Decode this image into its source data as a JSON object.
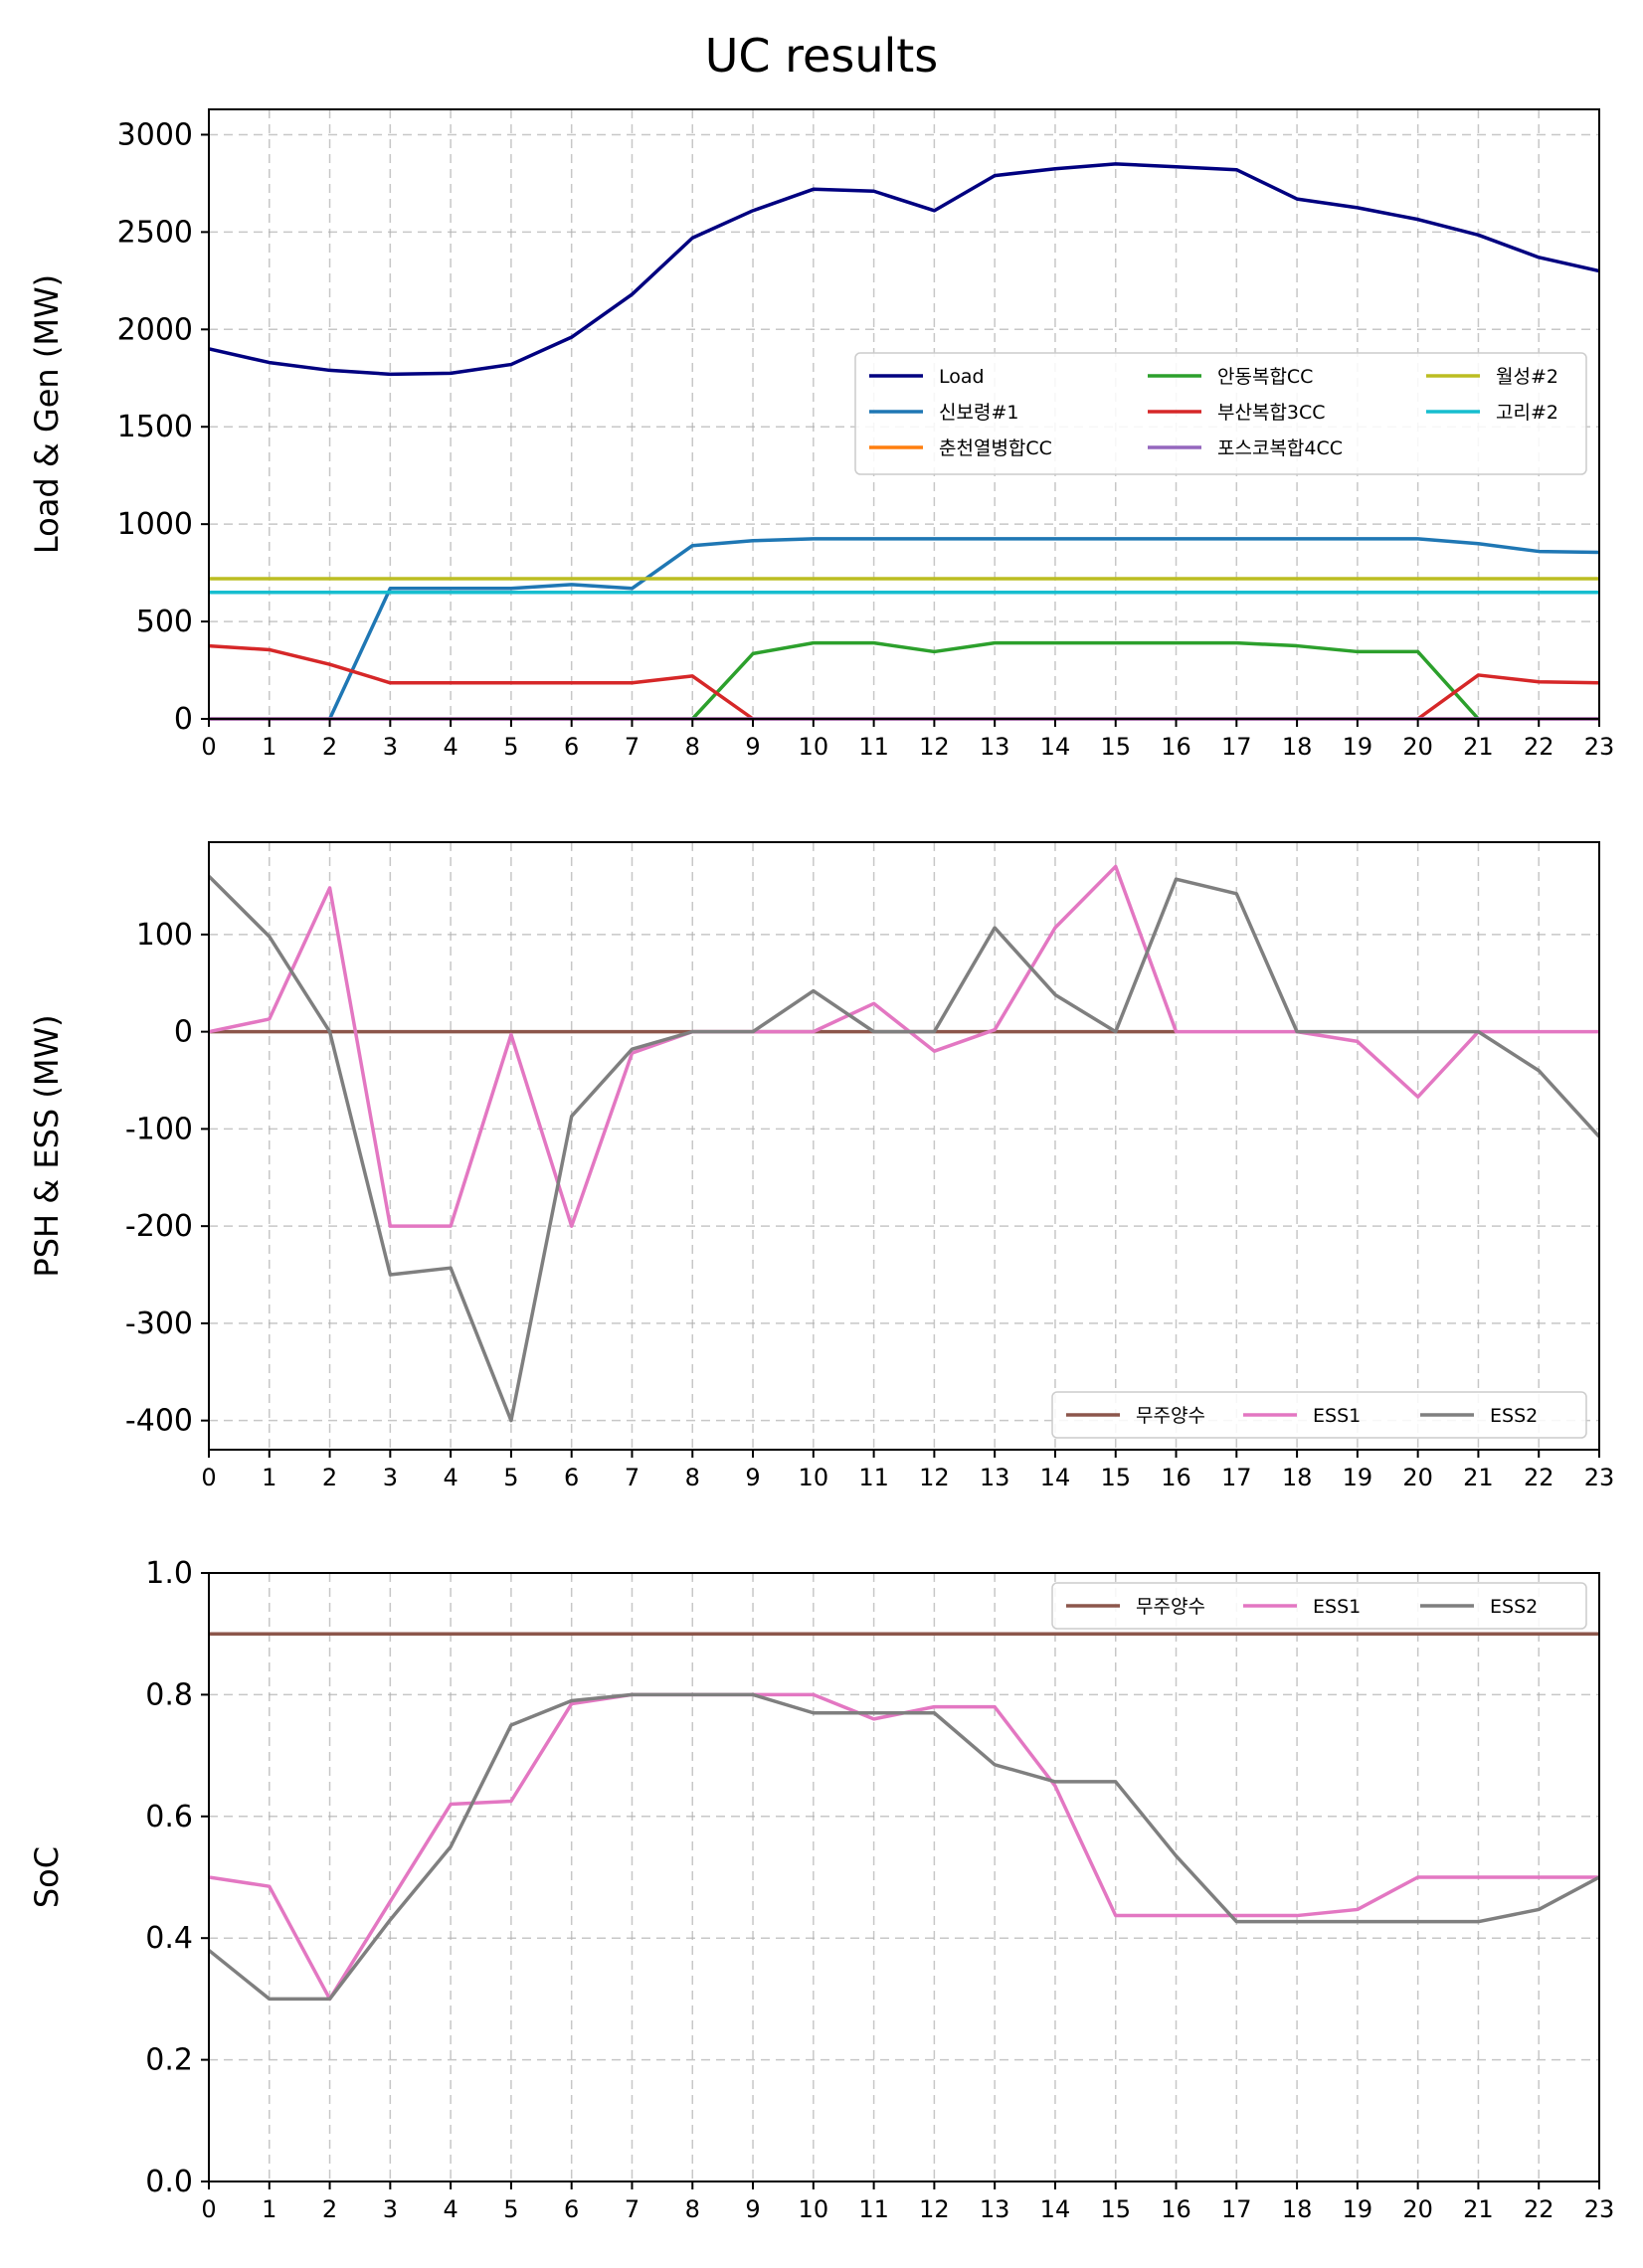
{
  "title": "UC results",
  "chart_data": [
    {
      "type": "line",
      "ylabel": "Load & Gen (MW)",
      "xlabel": "",
      "xlim": [
        0,
        23
      ],
      "ylim": [
        0,
        3130
      ],
      "yticks": [
        0,
        500,
        1000,
        1500,
        2000,
        2500,
        3000
      ],
      "grid": true,
      "legend": {
        "placement": "center-right",
        "columns": 3
      },
      "x": [
        0,
        1,
        2,
        3,
        4,
        5,
        6,
        7,
        8,
        9,
        10,
        11,
        12,
        13,
        14,
        15,
        16,
        17,
        18,
        19,
        20,
        21,
        22,
        23
      ],
      "series": [
        {
          "name": "Load",
          "color": "#000080",
          "values": [
            1900,
            1830,
            1790,
            1770,
            1775,
            1820,
            1960,
            2180,
            2470,
            2610,
            2720,
            2710,
            2610,
            2790,
            2825,
            2850,
            2835,
            2820,
            2670,
            2625,
            2565,
            2485,
            2370,
            2300
          ]
        },
        {
          "name": "신보령#1",
          "color": "#1f77b4",
          "values": [
            null,
            null,
            0,
            670,
            670,
            670,
            690,
            670,
            890,
            915,
            925,
            925,
            925,
            925,
            925,
            925,
            925,
            925,
            925,
            925,
            925,
            900,
            860,
            855
          ]
        },
        {
          "name": "춘천열병합CC",
          "color": "#ff7f0e",
          "values": [
            0,
            0,
            0,
            0,
            0,
            0,
            0,
            0,
            0,
            0,
            0,
            0,
            0,
            0,
            0,
            0,
            0,
            0,
            0,
            0,
            0,
            0,
            0,
            0
          ]
        },
        {
          "name": "안동복합CC",
          "color": "#2ca02c",
          "values": [
            null,
            null,
            null,
            null,
            null,
            null,
            null,
            null,
            0,
            335,
            390,
            390,
            345,
            390,
            390,
            390,
            390,
            390,
            375,
            345,
            345,
            0,
            null,
            null
          ]
        },
        {
          "name": "부산복합3CC",
          "color": "#d62728",
          "values": [
            375,
            355,
            280,
            185,
            185,
            185,
            185,
            185,
            220,
            0,
            null,
            null,
            null,
            null,
            null,
            null,
            null,
            null,
            null,
            null,
            0,
            225,
            190,
            185
          ]
        },
        {
          "name": "포스코복합4CC",
          "color": "#9467bd",
          "values": [
            0,
            0,
            0,
            0,
            0,
            0,
            0,
            0,
            0,
            0,
            0,
            0,
            0,
            0,
            0,
            0,
            0,
            0,
            0,
            0,
            0,
            0,
            0,
            0
          ]
        },
        {
          "name": "월성#2",
          "color": "#bcbd22",
          "values": [
            720,
            720,
            720,
            720,
            720,
            720,
            720,
            720,
            720,
            720,
            720,
            720,
            720,
            720,
            720,
            720,
            720,
            720,
            720,
            720,
            720,
            720,
            720,
            720
          ]
        },
        {
          "name": "고리#2",
          "color": "#17becf",
          "values": [
            650,
            650,
            650,
            650,
            650,
            650,
            650,
            650,
            650,
            650,
            650,
            650,
            650,
            650,
            650,
            650,
            650,
            650,
            650,
            650,
            650,
            650,
            650,
            650
          ]
        }
      ]
    },
    {
      "type": "line",
      "ylabel": "PSH & ESS (MW)",
      "xlabel": "",
      "xlim": [
        0,
        23
      ],
      "ylim": [
        -430,
        195
      ],
      "yticks": [
        -400,
        -300,
        -200,
        -100,
        0,
        100
      ],
      "grid": true,
      "legend": {
        "placement": "lower-right",
        "columns": 3
      },
      "x": [
        0,
        1,
        2,
        3,
        4,
        5,
        6,
        7,
        8,
        9,
        10,
        11,
        12,
        13,
        14,
        15,
        16,
        17,
        18,
        19,
        20,
        21,
        22,
        23
      ],
      "series": [
        {
          "name": "무주양수",
          "color": "#8c564b",
          "values": [
            0,
            0,
            0,
            0,
            0,
            0,
            0,
            0,
            0,
            0,
            0,
            0,
            0,
            0,
            0,
            0,
            0,
            null,
            null,
            null,
            null,
            null,
            null,
            null
          ]
        },
        {
          "name": "ESS1",
          "color": "#e377c2",
          "values": [
            0,
            13,
            148,
            -200,
            -200,
            -3,
            -200,
            -22,
            0,
            0,
            0,
            29,
            -20,
            2,
            107,
            170,
            0,
            0,
            0,
            -10,
            -67,
            0,
            0,
            0
          ]
        },
        {
          "name": "ESS2",
          "color": "#7f7f7f",
          "values": [
            160,
            98,
            0,
            -250,
            -243,
            -400,
            -87,
            -18,
            0,
            0,
            42,
            0,
            0,
            107,
            38,
            0,
            157,
            142,
            0,
            0,
            0,
            0,
            -40,
            -108
          ]
        }
      ]
    },
    {
      "type": "line",
      "ylabel": "SoC",
      "xlabel": "",
      "xlim": [
        0,
        23
      ],
      "ylim": [
        0.0,
        1.0
      ],
      "yticks": [
        0.0,
        0.2,
        0.4,
        0.6,
        0.8,
        1.0
      ],
      "grid": true,
      "legend": {
        "placement": "upper-right",
        "columns": 3
      },
      "x": [
        0,
        1,
        2,
        3,
        4,
        5,
        6,
        7,
        8,
        9,
        10,
        11,
        12,
        13,
        14,
        15,
        16,
        17,
        18,
        19,
        20,
        21,
        22,
        23
      ],
      "series": [
        {
          "name": "무주양수",
          "color": "#8c564b",
          "values": [
            0.9,
            0.9,
            0.9,
            0.9,
            0.9,
            0.9,
            0.9,
            0.9,
            0.9,
            0.9,
            0.9,
            0.9,
            0.9,
            0.9,
            0.9,
            0.9,
            0.9,
            0.9,
            0.9,
            0.9,
            0.9,
            0.9,
            0.9,
            0.9
          ]
        },
        {
          "name": "ESS1",
          "color": "#e377c2",
          "values": [
            0.5,
            0.485,
            0.3,
            0.46,
            0.62,
            0.625,
            0.785,
            0.8,
            0.8,
            0.8,
            0.8,
            0.76,
            0.78,
            0.78,
            0.65,
            0.437,
            0.437,
            0.437,
            0.437,
            0.447,
            0.5,
            0.5,
            0.5,
            0.5
          ]
        },
        {
          "name": "ESS2",
          "color": "#7f7f7f",
          "values": [
            0.38,
            0.3,
            0.3,
            0.43,
            0.55,
            0.75,
            0.79,
            0.8,
            0.8,
            0.8,
            0.77,
            0.77,
            0.77,
            0.685,
            0.657,
            0.657,
            0.535,
            0.427,
            0.427,
            0.427,
            0.427,
            0.427,
            0.447,
            0.5
          ]
        }
      ]
    }
  ]
}
